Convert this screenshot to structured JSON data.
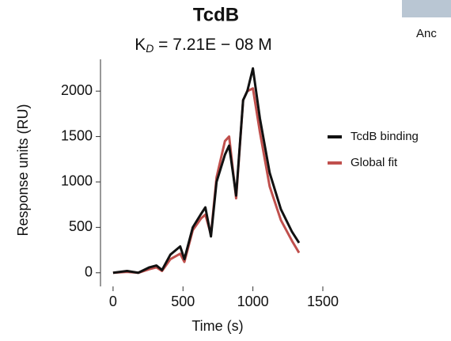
{
  "chart_data": {
    "type": "line",
    "title": "TcdB",
    "subtitle": [
      "K",
      "D",
      " = 7.21E − 08 M"
    ],
    "x_label": "Time (s)",
    "y_label": "Response units (RU)",
    "x": [
      0,
      100,
      180,
      260,
      310,
      350,
      410,
      480,
      510,
      570,
      630,
      660,
      700,
      740,
      800,
      830,
      880,
      930,
      960,
      1000,
      1050,
      1120,
      1200,
      1280,
      1330
    ],
    "series": [
      {
        "name": "TcdB binding",
        "color": "#111111",
        "values": [
          0,
          20,
          0,
          60,
          80,
          30,
          200,
          290,
          150,
          500,
          650,
          720,
          400,
          1000,
          1300,
          1400,
          850,
          1900,
          2000,
          2250,
          1700,
          1100,
          700,
          450,
          330
        ]
      },
      {
        "name": "Global fit",
        "color": "#c0504d",
        "values": [
          0,
          10,
          0,
          40,
          60,
          20,
          150,
          210,
          120,
          470,
          600,
          640,
          420,
          1050,
          1450,
          1500,
          820,
          1900,
          2000,
          2030,
          1550,
          950,
          580,
          350,
          220
        ]
      }
    ],
    "xlim": [
      -90,
      1500
    ],
    "xticks": [
      0,
      500,
      1000,
      1500
    ],
    "ylim": [
      -150,
      2350
    ],
    "yticks": [
      0,
      500,
      1000,
      1500,
      2000
    ],
    "legend": "right"
  },
  "fragment_text": "Anc"
}
